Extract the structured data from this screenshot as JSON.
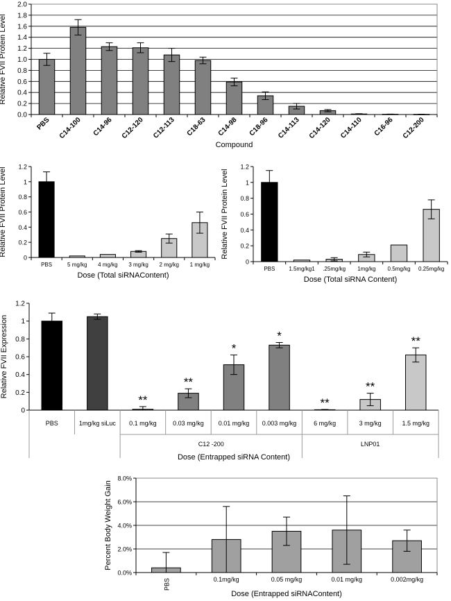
{
  "chart_data": [
    {
      "id": "a",
      "type": "bar",
      "xlabel": "Compound",
      "ylabel": "Relative FVII Protein Level",
      "ylim": [
        0,
        2.0
      ],
      "yticks": [
        "0.0",
        "0.2",
        "0.4",
        "0.6",
        "0.8",
        "1.0",
        "1.2",
        "1.4",
        "1.6",
        "1.8",
        "2.0"
      ],
      "grid": true,
      "categories": [
        "PBS",
        "C14-100",
        "C14-96",
        "C12-120",
        "C12-113",
        "C18-63",
        "C14-98",
        "C18-96",
        "C14-113",
        "C14-120",
        "C14-110",
        "C16-96",
        "C12-200"
      ],
      "values": [
        1.0,
        1.58,
        1.23,
        1.21,
        1.08,
        0.98,
        0.59,
        0.34,
        0.15,
        0.07,
        0.01,
        0.005,
        0.003
      ],
      "errors": [
        0.11,
        0.14,
        0.07,
        0.09,
        0.12,
        0.06,
        0.07,
        0.07,
        0.05,
        0.02,
        0.005,
        0.003,
        0.002
      ],
      "bar_colors": [
        "#808080",
        "#808080",
        "#808080",
        "#808080",
        "#808080",
        "#808080",
        "#808080",
        "#808080",
        "#808080",
        "#808080",
        "#808080",
        "#808080",
        "#808080"
      ]
    },
    {
      "id": "b",
      "type": "bar",
      "xlabel": "Dose (Total siRNAContent)",
      "ylabel": "Relative FVII Protein Level",
      "ylim": [
        0,
        1.2
      ],
      "yticks": [
        "0",
        "0.2",
        "0.4",
        "0.6",
        "0.8",
        "1",
        "1.2"
      ],
      "grid": false,
      "categories": [
        "PBS",
        "5 mg/kg",
        "4 mg/kg",
        "3 mg/kg",
        "2 mg/kg",
        "1 mg/kg"
      ],
      "values": [
        1.0,
        0.02,
        0.04,
        0.08,
        0.25,
        0.46
      ],
      "errors": [
        0.13,
        0.0,
        0.0,
        0.01,
        0.06,
        0.14
      ],
      "bar_colors": [
        "#000000",
        "#c8c8c8",
        "#c8c8c8",
        "#c8c8c8",
        "#c8c8c8",
        "#c8c8c8"
      ]
    },
    {
      "id": "c",
      "type": "bar",
      "xlabel": "Dose (Total siRNA Content)",
      "ylabel": "Relative FVII Protein Level",
      "ylim": [
        0,
        1.2
      ],
      "yticks": [
        "0",
        "0.2",
        "0.4",
        "0.6",
        "0.8",
        "1",
        "1.2"
      ],
      "grid": false,
      "categories": [
        "PBS",
        "1.5mg/kg",
        "1.25mg/kg",
        "1mg/kg",
        "0.5mg/kg",
        "0.25mg/kg"
      ],
      "display_labels": [
        "PBS",
        "1.5mg/kg1",
        ".25mg/kg",
        "1mg/kg",
        "0.5mg/kg",
        "0.25mg/kg"
      ],
      "values": [
        1.0,
        0.02,
        0.03,
        0.09,
        0.21,
        0.66
      ],
      "errors": [
        0.15,
        0.0,
        0.02,
        0.03,
        0.0,
        0.12
      ],
      "bar_colors": [
        "#000000",
        "#c8c8c8",
        "#c8c8c8",
        "#c8c8c8",
        "#c8c8c8",
        "#c8c8c8"
      ]
    },
    {
      "id": "d",
      "type": "bar",
      "xlabel": "Dose (Entrapped siRNA Content)",
      "ylabel": "Relative FVII Expression",
      "ylim": [
        0,
        1.2
      ],
      "yticks": [
        "0",
        "0.2",
        "0.4",
        "0.6",
        "0.8",
        "1",
        "1.2"
      ],
      "grid": false,
      "categories": [
        "PBS",
        "1mg/kg siLuc",
        "0.1 mg/kg",
        "0.03 mg/kg",
        "0.01 mg/kg",
        "0.003 mg/kg",
        "6 mg/kg",
        "3 mg/kg",
        "1.5 mg/kg"
      ],
      "values": [
        1.0,
        1.05,
        0.01,
        0.19,
        0.51,
        0.73,
        0.005,
        0.12,
        0.62
      ],
      "errors": [
        0.09,
        0.03,
        0.03,
        0.05,
        0.11,
        0.03,
        0.003,
        0.07,
        0.08
      ],
      "significance": [
        "",
        "",
        "**",
        "**",
        "*",
        "*",
        "**",
        "**",
        "**"
      ],
      "bar_colors": [
        "#000000",
        "#404040",
        "#808080",
        "#808080",
        "#808080",
        "#808080",
        "#c8c8c8",
        "#c8c8c8",
        "#c8c8c8"
      ],
      "groups": [
        {
          "label": "C12 -200",
          "start": 2,
          "end": 5
        },
        {
          "label": "LNP01",
          "start": 6,
          "end": 8
        }
      ]
    },
    {
      "id": "e",
      "type": "bar",
      "xlabel": "Dose (Entrapped siRNAContent)",
      "ylabel": "Percent Body Weight Gain",
      "ylim": [
        0,
        0.08
      ],
      "yticks": [
        "0.0%",
        "2.0%",
        "4.0%",
        "6.0%",
        "8.0%"
      ],
      "grid": true,
      "categories": [
        "PBS",
        "0.1mg/kg",
        "0.05 mg/kg",
        "0.01 mg/kg",
        "0.002mg/kg"
      ],
      "values": [
        0.004,
        0.028,
        0.035,
        0.036,
        0.027
      ],
      "errors": [
        0.013,
        0.028,
        0.012,
        0.029,
        0.009
      ],
      "bar_colors": [
        "#a0a0a0",
        "#a0a0a0",
        "#a0a0a0",
        "#a0a0a0",
        "#a0a0a0"
      ]
    }
  ]
}
